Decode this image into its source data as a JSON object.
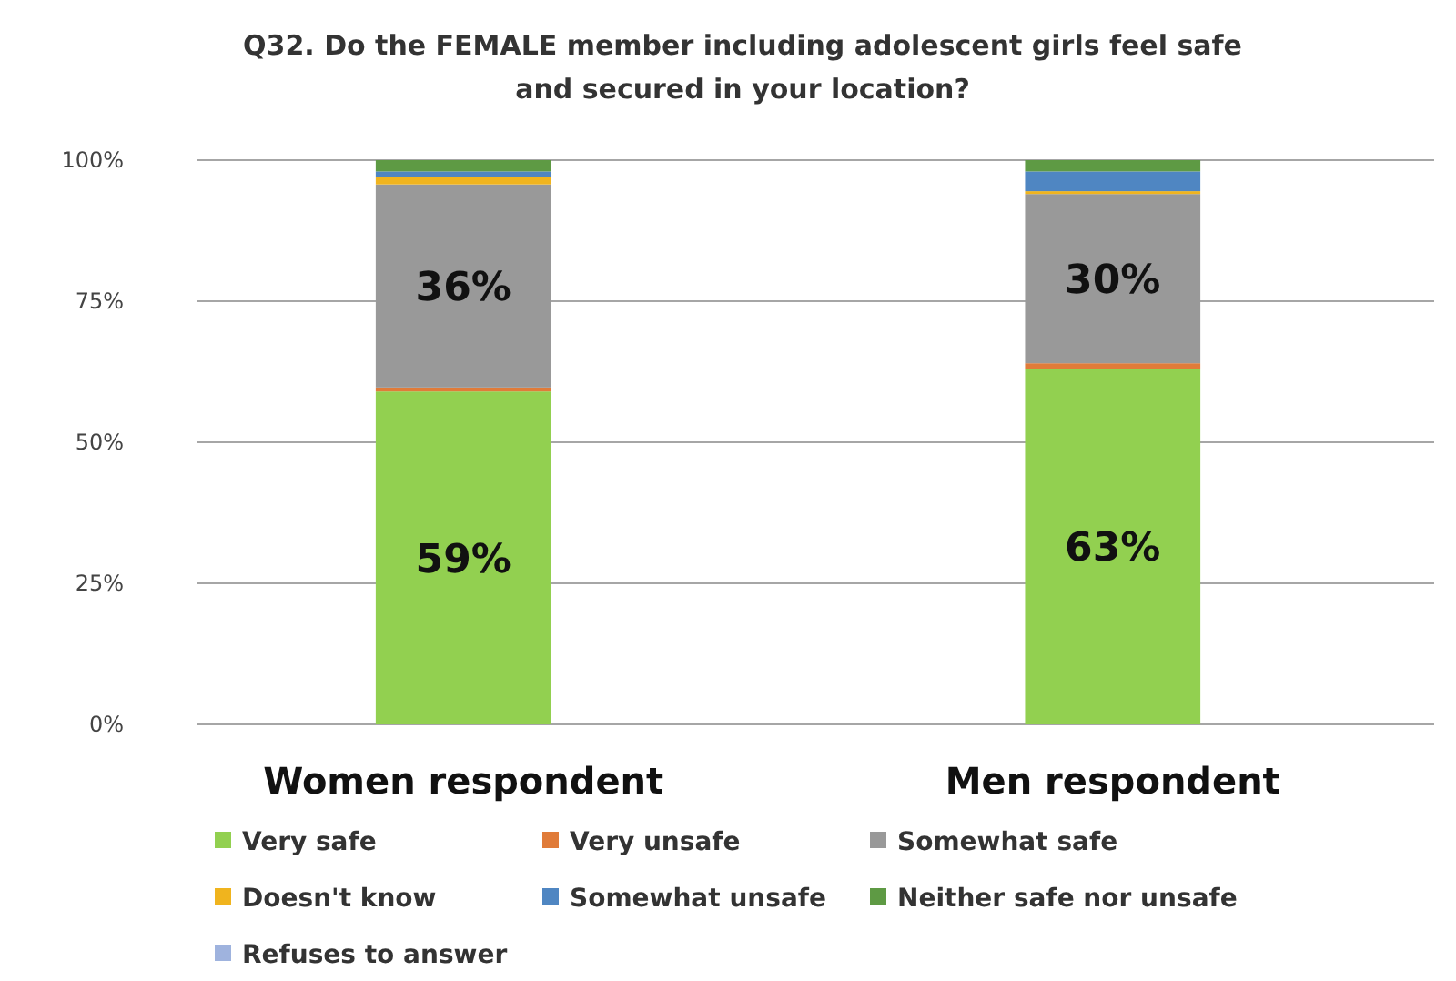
{
  "chart_data": {
    "type": "bar",
    "title": "Q32. Do the FEMALE member including adolescent girls feel safe and secured in your location?",
    "categories": [
      "Women respondent",
      "Men respondent"
    ],
    "stacked": true,
    "ylim": [
      0,
      100
    ],
    "yticks": [
      {
        "value": 0,
        "label": "0%"
      },
      {
        "value": 25,
        "label": "25%"
      },
      {
        "value": 50,
        "label": "50%"
      },
      {
        "value": 75,
        "label": "75%"
      },
      {
        "value": 100,
        "label": "100%"
      }
    ],
    "grid": "y",
    "legend": "bottom",
    "series": [
      {
        "name": "Very safe",
        "color": "#92d050",
        "values": [
          59,
          63
        ],
        "value_labels": [
          "59%",
          "63%"
        ]
      },
      {
        "name": "Very unsafe",
        "color": "#e07b39",
        "values": [
          0.7,
          1
        ],
        "value_labels": [
          null,
          null
        ]
      },
      {
        "name": "Somewhat safe",
        "color": "#999999",
        "values": [
          36,
          30
        ],
        "value_labels": [
          "36%",
          "30%"
        ]
      },
      {
        "name": "Doesn't know",
        "color": "#f0b41e",
        "values": [
          1.3,
          0.5
        ],
        "value_labels": [
          null,
          null
        ]
      },
      {
        "name": "Somewhat unsafe",
        "color": "#4f86c2",
        "values": [
          1,
          3.5
        ],
        "value_labels": [
          null,
          null
        ]
      },
      {
        "name": "Neither safe nor unsafe",
        "color": "#5e9a44",
        "values": [
          2,
          2
        ],
        "value_labels": [
          null,
          null
        ]
      },
      {
        "name": "Refuses to answer",
        "color": "#9fb3de",
        "values": [
          0,
          0
        ],
        "value_labels": [
          null,
          null
        ]
      }
    ]
  }
}
